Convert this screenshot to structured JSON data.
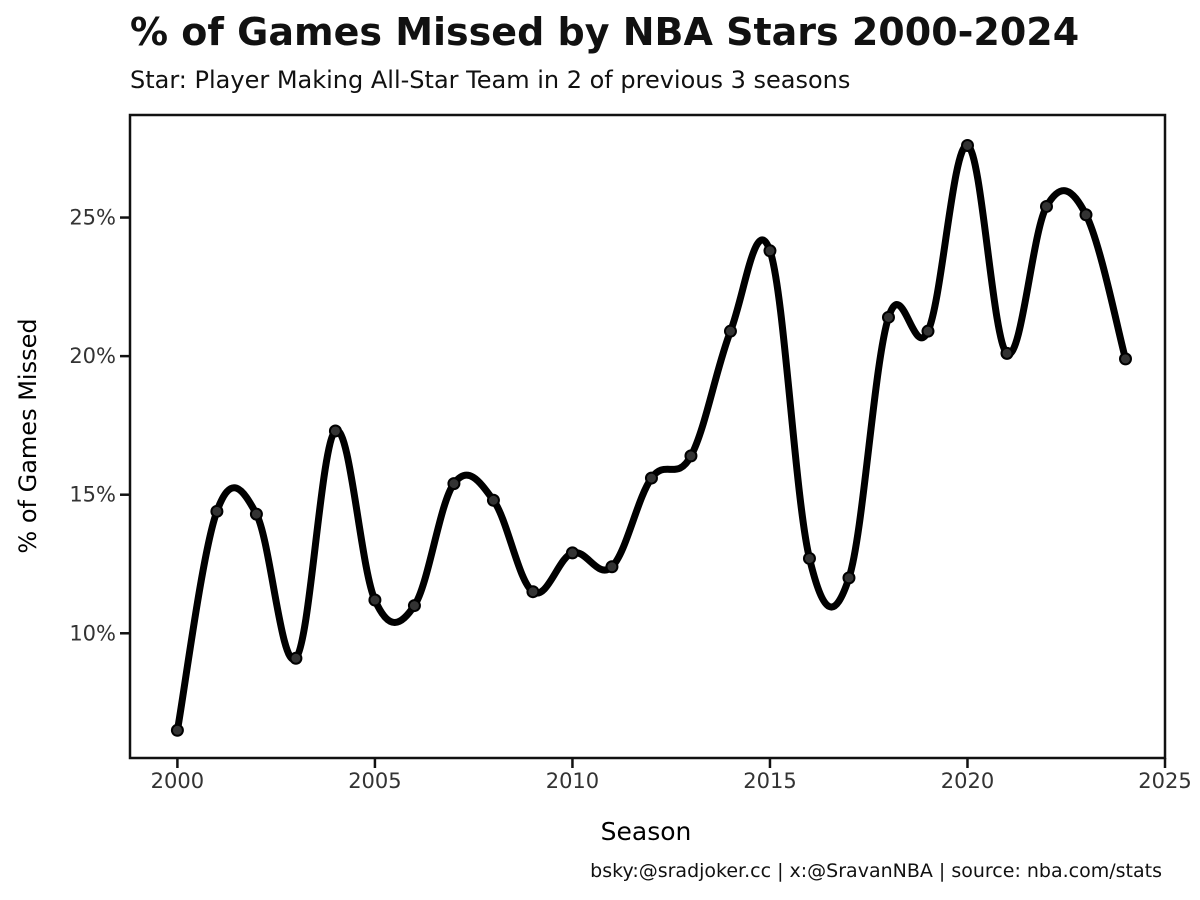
{
  "chart_data": {
    "type": "line",
    "title": "% of Games Missed by NBA Stars 2000-2024",
    "subtitle": "Star: Player Making All-Star Team in 2 of previous 3 seasons",
    "xlabel": "Season",
    "ylabel": "% of Games Missed",
    "credit": "bsky:@sradjoker.cc | x:@SravanNBA | source: nba.com/stats",
    "xlim": [
      1998.8,
      2025
    ],
    "ylim": [
      5.5,
      28.7
    ],
    "xticks": [
      2000,
      2005,
      2010,
      2015,
      2020,
      2025
    ],
    "xtick_labels": [
      "2000",
      "2005",
      "2010",
      "2015",
      "2020",
      "2025"
    ],
    "yticks": [
      10,
      15,
      20,
      25
    ],
    "ytick_labels": [
      "10%",
      "15%",
      "20%",
      "25%"
    ],
    "grid": false,
    "legend": "none",
    "line_color": "#000000",
    "x": [
      2000,
      2001,
      2002,
      2003,
      2004,
      2005,
      2006,
      2007,
      2008,
      2009,
      2010,
      2011,
      2012,
      2013,
      2014,
      2015,
      2016,
      2017,
      2018,
      2019,
      2020,
      2021,
      2022,
      2023,
      2024
    ],
    "values": [
      6.5,
      14.4,
      14.3,
      9.1,
      17.3,
      11.2,
      11.0,
      15.4,
      14.8,
      11.5,
      12.9,
      12.4,
      15.6,
      16.4,
      20.9,
      23.8,
      12.7,
      12.0,
      21.4,
      20.9,
      27.6,
      20.1,
      25.4,
      25.1,
      19.9
    ]
  }
}
